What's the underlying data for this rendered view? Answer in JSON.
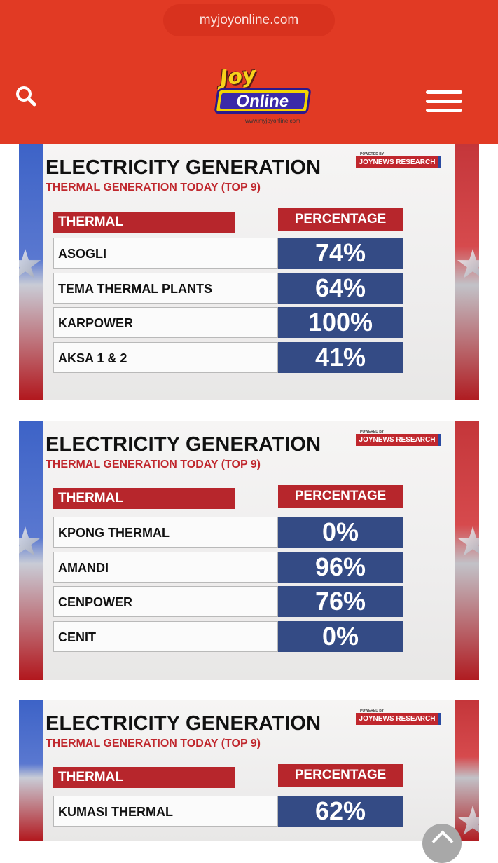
{
  "browser": {
    "url": "myjoyonline.com"
  },
  "header": {
    "logo": {
      "top": "Joy",
      "main": "Online",
      "url": "www.myjoyonline.com"
    },
    "search_icon": "search-icon",
    "menu_icon": "hamburger-menu-icon"
  },
  "colors": {
    "brand_red": "#e13a24",
    "table_blue": "#344b85",
    "header_red": "#b7262c"
  },
  "cards": [
    {
      "title": "ELECTRICITY GENERATION",
      "subtitle": "THERMAL GENERATION TODAY (TOP 9)",
      "powered_by": "POWERED BY",
      "badge": "JOYNEWS RESEARCH",
      "col_name": "THERMAL",
      "col_value": "PERCENTAGE",
      "rows": [
        {
          "name": "ASOGLI",
          "value": "74%"
        },
        {
          "name": "TEMA THERMAL PLANTS",
          "value": "64%"
        },
        {
          "name": "KARPOWER",
          "value": "100%"
        },
        {
          "name": "AKSA 1 & 2",
          "value": "41%"
        }
      ]
    },
    {
      "title": "ELECTRICITY GENERATION",
      "subtitle": "THERMAL GENERATION TODAY (TOP 9)",
      "powered_by": "POWERED BY",
      "badge": "JOYNEWS RESEARCH",
      "col_name": "THERMAL",
      "col_value": "PERCENTAGE",
      "rows": [
        {
          "name": "KPONG THERMAL",
          "value": "0%"
        },
        {
          "name": "AMANDI",
          "value": "96%"
        },
        {
          "name": "CENPOWER",
          "value": "76%"
        },
        {
          "name": "CENIT",
          "value": "0%"
        }
      ]
    },
    {
      "title": "ELECTRICITY GENERATION",
      "subtitle": "THERMAL GENERATION TODAY (TOP 9)",
      "powered_by": "POWERED BY",
      "badge": "JOYNEWS RESEARCH",
      "col_name": "THERMAL",
      "col_value": "PERCENTAGE",
      "rows": [
        {
          "name": "KUMASI THERMAL",
          "value": "62%"
        }
      ]
    }
  ],
  "scroll_top_icon": "chevron-up-icon"
}
